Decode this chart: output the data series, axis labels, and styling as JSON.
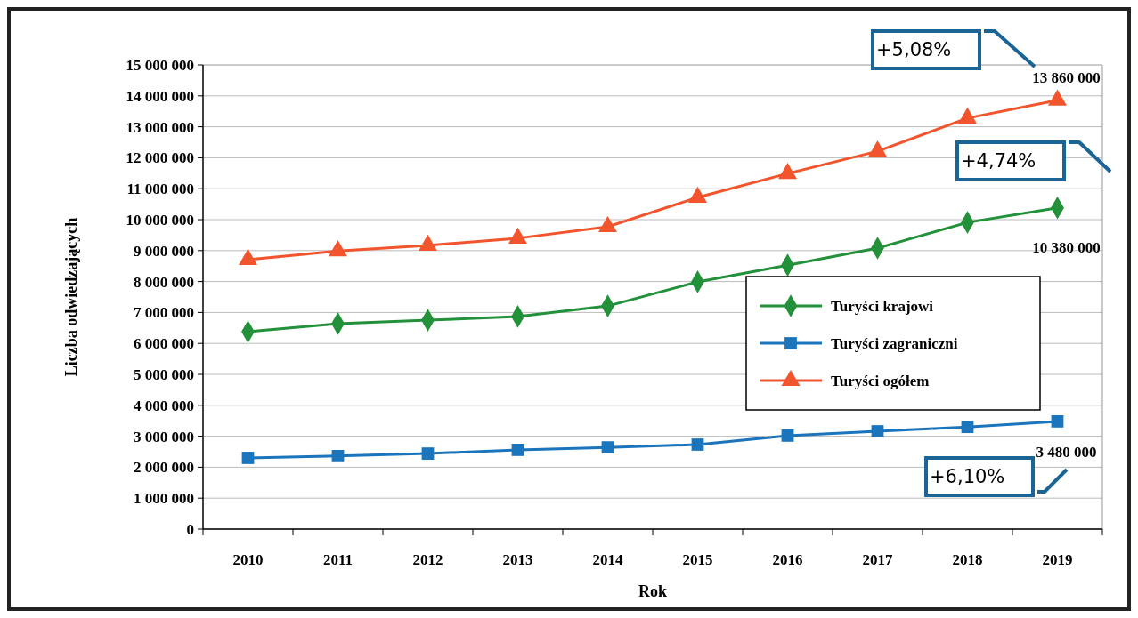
{
  "chart_data": {
    "type": "line",
    "xlabel": "Rok",
    "ylabel": "Liczba odwiedzających",
    "categories": [
      "2010",
      "2011",
      "2012",
      "2013",
      "2014",
      "2015",
      "2016",
      "2017",
      "2018",
      "2019"
    ],
    "series": [
      {
        "name": "Turyści krajowi",
        "color": "#23913a",
        "marker": "diamond",
        "values": [
          6380000,
          6640000,
          6750000,
          6870000,
          7210000,
          7990000,
          8530000,
          9080000,
          9910000,
          10380000
        ],
        "value_labels": [
          null,
          null,
          null,
          null,
          null,
          null,
          null,
          null,
          null,
          "10 380 000"
        ]
      },
      {
        "name": "Turyści zagraniczni",
        "color": "#1a75bc",
        "marker": "square",
        "values": [
          2300000,
          2360000,
          2440000,
          2560000,
          2640000,
          2730000,
          3020000,
          3160000,
          3300000,
          3480000
        ],
        "value_labels": [
          null,
          null,
          null,
          null,
          null,
          null,
          null,
          null,
          null,
          "3 480 000"
        ]
      },
      {
        "name": "Turyści ogółem",
        "color": "#f2542d",
        "marker": "triangle",
        "values": [
          8710000,
          8990000,
          9170000,
          9400000,
          9770000,
          10720000,
          11490000,
          12210000,
          13280000,
          13860000
        ],
        "value_labels": [
          null,
          null,
          null,
          null,
          null,
          null,
          null,
          null,
          null,
          "13 860 000"
        ]
      }
    ],
    "ylim": [
      0,
      15000000
    ],
    "yticks": [
      0,
      {
        "value": 1000000,
        "label": "1 000 000"
      },
      {
        "value": 2000000,
        "label": "2 000 000"
      },
      {
        "value": 3000000,
        "label": "3 000 000"
      },
      {
        "value": 4000000,
        "label": "4 000 000"
      },
      {
        "value": 5000000,
        "label": "5 000 000"
      },
      {
        "value": 6000000,
        "label": "6 000 000"
      },
      {
        "value": 7000000,
        "label": "7 000 000"
      },
      {
        "value": 8000000,
        "label": "8 000 000"
      },
      {
        "value": 9000000,
        "label": "9 000 000"
      },
      {
        "value": 10000000,
        "label": "10 000 000"
      },
      {
        "value": 11000000,
        "label": "11 000 000"
      },
      {
        "value": 12000000,
        "label": "12 000 000"
      },
      {
        "value": 13000000,
        "label": "13 000 000"
      },
      {
        "value": 14000000,
        "label": "14 000 000"
      },
      {
        "value": 15000000,
        "label": "15 000 000"
      }
    ],
    "grid": "y",
    "legend": "right",
    "annotations": [
      "+5,08%",
      "+4,74%",
      "+6,10%"
    ]
  }
}
